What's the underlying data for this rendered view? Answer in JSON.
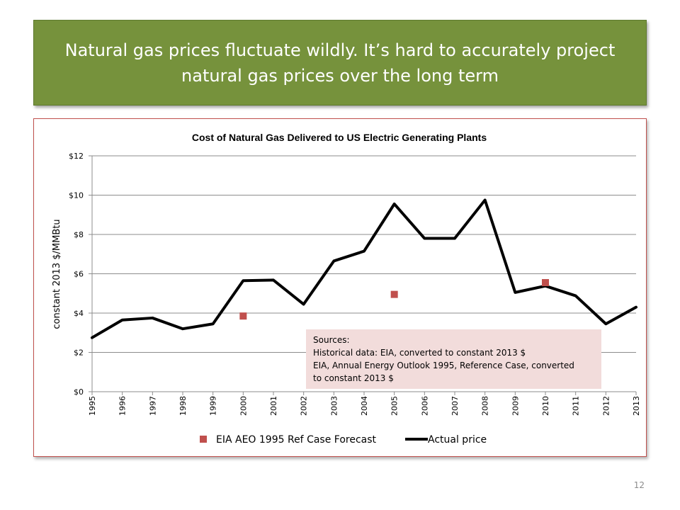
{
  "slide": {
    "title": "Natural gas prices fluctuate wildly.  It’s hard to accurately project natural gas prices over the long term",
    "page_number": "12",
    "colors": {
      "banner": "#76923c",
      "frame": "#c0504d",
      "forecast": "#c0504d",
      "actual": "#000000",
      "note_bg": "#f2dcdb"
    }
  },
  "chart_data": {
    "type": "line",
    "title": "Cost of Natural Gas Delivered to US Electric Generating Plants",
    "xlabel": "",
    "ylabel": "constant 2013 $/MMBtu",
    "ylim": [
      0,
      12
    ],
    "yticks": [
      0,
      2,
      4,
      6,
      8,
      10,
      12
    ],
    "ytick_labels": [
      "$0",
      "$2",
      "$4",
      "$6",
      "$8",
      "$10",
      "$12"
    ],
    "categories": [
      "1995",
      "1996",
      "1997",
      "1998",
      "1999",
      "2000",
      "2001",
      "2002",
      "2003",
      "2004",
      "2005",
      "2006",
      "2007",
      "2008",
      "2009",
      "2010",
      "2011",
      "2012",
      "2013"
    ],
    "grid": true,
    "legend_position": "bottom",
    "series": [
      {
        "name": "EIA AEO 1995 Ref Case Forecast",
        "style": "marker",
        "color": "#c0504d",
        "points": [
          {
            "x": "2000",
            "y": 3.85
          },
          {
            "x": "2005",
            "y": 4.95
          },
          {
            "x": "2010",
            "y": 5.55
          }
        ]
      },
      {
        "name": "Actual price",
        "style": "line",
        "color": "#000000",
        "values": [
          2.75,
          3.65,
          3.75,
          3.2,
          3.45,
          5.65,
          5.68,
          4.45,
          6.65,
          7.15,
          9.55,
          7.8,
          7.8,
          9.75,
          5.05,
          5.38,
          4.88,
          3.45,
          4.3
        ]
      }
    ],
    "annotation": {
      "lines": [
        "Sources:",
        "Historical data: EIA, converted to constant 2013 $",
        "EIA, Annual Energy Outlook 1995, Reference Case, converted",
        "to constant 2013 $"
      ]
    }
  }
}
